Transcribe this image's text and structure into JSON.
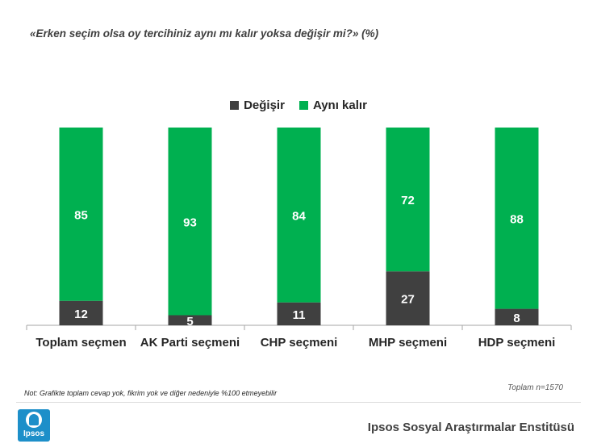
{
  "title": "«Erken seçim olsa oy tercihiniz aynı mı kalır yoksa değişir mi?» (%)",
  "note": "Not: Grafikte toplam cevap yok, fikrim yok ve diğer nedeniyle %100 etmeyebilir",
  "sample": "Toplam n=1570",
  "footer": {
    "logo_text": "Ipsos",
    "institute": "Ipsos Sosyal Araştırmalar Enstitüsü"
  },
  "colors": {
    "degisir": "#404040",
    "ayni_kalir": "#00b050"
  },
  "chart_data": {
    "type": "bar",
    "stacked": true,
    "title": "«Erken seçim olsa oy tercihiniz aynı mı kalır yoksa değişir mi?» (%)",
    "categories": [
      "Toplam seçmen",
      "AK Parti seçmeni",
      "CHP seçmeni",
      "MHP seçmeni",
      "HDP seçmeni"
    ],
    "series": [
      {
        "name": "Değişir",
        "values": [
          12,
          5,
          11,
          27,
          8
        ]
      },
      {
        "name": "Aynı kalır",
        "values": [
          85,
          93,
          84,
          72,
          88
        ]
      }
    ],
    "legend": "top",
    "grid": false
  }
}
